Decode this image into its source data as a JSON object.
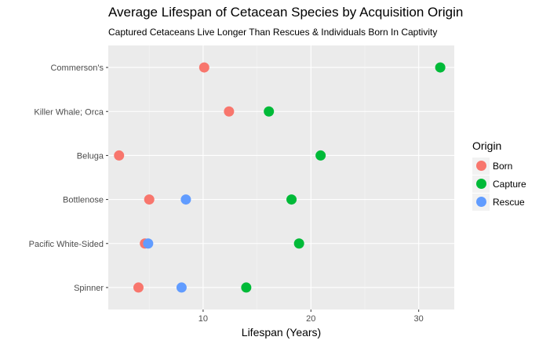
{
  "chart_data": {
    "type": "scatter",
    "title": "Average Lifespan of Cetacean Species by Acquisition Origin",
    "subtitle": "Captured Cetaceans Live Longer Than Rescues & Individuals Born In Captivity",
    "xlabel": "Lifespan (Years)",
    "ylabel": "",
    "xlim": [
      1.2,
      33.3
    ],
    "x_ticks": [
      10,
      20,
      30
    ],
    "categories": [
      "Commerson's",
      "Killer Whale; Orca",
      "Beluga",
      "Bottlenose",
      "Pacific White-Sided",
      "Spinner"
    ],
    "grid": true,
    "legend": {
      "title": "Origin",
      "position": "right"
    },
    "series": [
      {
        "name": "Born",
        "color": "#F8766D",
        "values": [
          10.1,
          12.4,
          2.2,
          5.0,
          4.6,
          4.0
        ]
      },
      {
        "name": "Capture",
        "color": "#00BA38",
        "values": [
          32.0,
          16.1,
          20.9,
          18.2,
          18.9,
          14.0
        ]
      },
      {
        "name": "Rescue",
        "color": "#619CFF",
        "values": [
          null,
          null,
          null,
          8.4,
          4.9,
          8.0
        ]
      }
    ]
  }
}
